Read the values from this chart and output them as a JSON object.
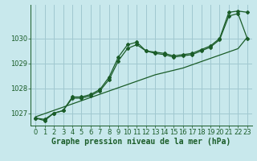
{
  "title": "Graphe pression niveau de la mer (hPa)",
  "bg_color": "#c8e8ec",
  "grid_color": "#a0c8d0",
  "line_color": "#1a5c28",
  "x_values": [
    0,
    1,
    2,
    3,
    4,
    5,
    6,
    7,
    8,
    9,
    10,
    11,
    12,
    13,
    14,
    15,
    16,
    17,
    18,
    19,
    20,
    21,
    22,
    23
  ],
  "y_detailed": [
    1026.8,
    1026.7,
    1027.0,
    1027.1,
    1027.65,
    1027.65,
    1027.75,
    1027.95,
    1028.45,
    1029.25,
    1029.75,
    1029.85,
    1029.5,
    1029.45,
    1029.4,
    1029.3,
    1029.35,
    1029.4,
    1029.55,
    1029.7,
    1030.0,
    1031.05,
    1031.1,
    1031.05
  ],
  "y_smooth": [
    1026.8,
    1026.75,
    1027.0,
    1027.1,
    1027.6,
    1027.6,
    1027.7,
    1027.9,
    1028.35,
    1029.1,
    1029.6,
    1029.75,
    1029.5,
    1029.4,
    1029.35,
    1029.25,
    1029.3,
    1029.35,
    1029.5,
    1029.65,
    1029.95,
    1030.9,
    1031.0,
    1030.0
  ],
  "y_trend": [
    1026.85,
    1026.98,
    1027.11,
    1027.24,
    1027.37,
    1027.5,
    1027.63,
    1027.76,
    1027.89,
    1028.02,
    1028.15,
    1028.28,
    1028.41,
    1028.54,
    1028.63,
    1028.72,
    1028.81,
    1028.94,
    1029.07,
    1029.2,
    1029.33,
    1029.46,
    1029.59,
    1030.05
  ],
  "ylim": [
    1026.5,
    1031.35
  ],
  "yticks": [
    1027,
    1028,
    1029,
    1030
  ],
  "xlim": [
    -0.5,
    23.5
  ],
  "xticks": [
    0,
    1,
    2,
    3,
    4,
    5,
    6,
    7,
    8,
    9,
    10,
    11,
    12,
    13,
    14,
    15,
    16,
    17,
    18,
    19,
    20,
    21,
    22,
    23
  ],
  "title_fontsize": 7.0,
  "tick_fontsize": 6.0,
  "marker": "D",
  "marker_size": 2.0,
  "line_width": 0.9
}
